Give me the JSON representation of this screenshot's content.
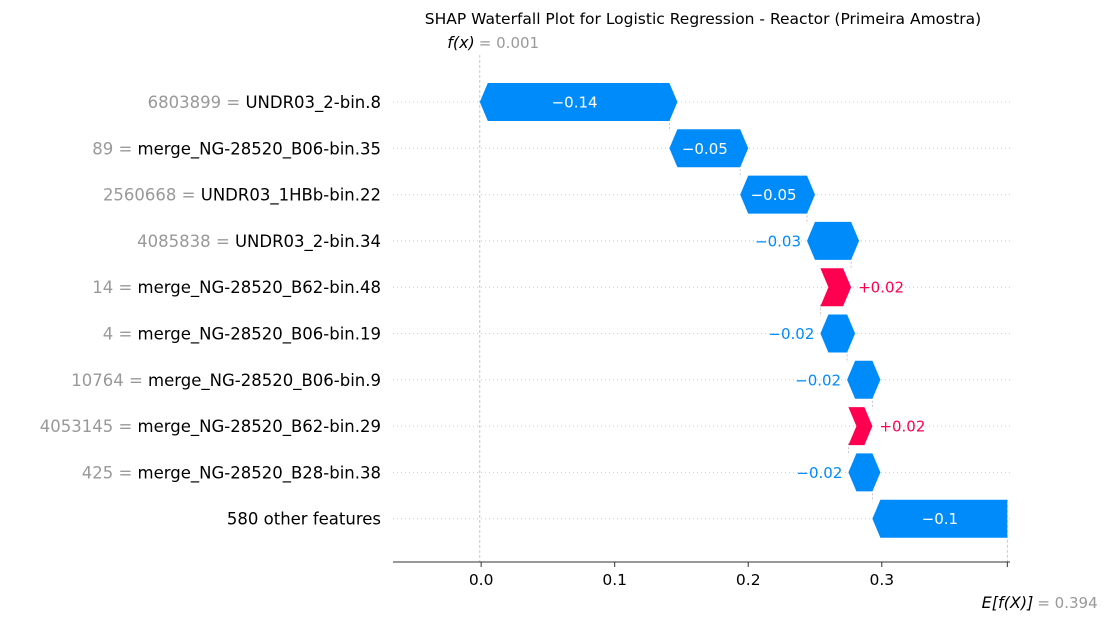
{
  "chart_data": {
    "type": "waterfall",
    "title": "SHAP Waterfall Plot for Logistic Regression - Reactor (Primeira Amostra)",
    "fx_label": "f(x)",
    "fx_value": "0.001",
    "efx_label": "E[f(X)]",
    "efx_value": "0.394",
    "xlim": [
      -0.066,
      0.396
    ],
    "xticks": [
      0.0,
      0.1,
      0.2,
      0.3
    ],
    "xtick_labels": [
      "0.0",
      "0.1",
      "0.2",
      "0.3"
    ],
    "colors": {
      "negative": "#008bfb",
      "positive": "#ff0051",
      "feature_value": "#999999",
      "text": "#000000"
    },
    "features": [
      {
        "value": "6803899",
        "name": "UNDR03_2-bin.8",
        "shap": -0.142,
        "label": "−0.14"
      },
      {
        "value": "89",
        "name": "merge_NG-28520_B06-bin.35",
        "shap": -0.053,
        "label": "−0.05"
      },
      {
        "value": "2560668",
        "name": "UNDR03_1HBb-bin.22",
        "shap": -0.05,
        "label": "−0.05"
      },
      {
        "value": "4085838",
        "name": "UNDR03_2-bin.34",
        "shap": -0.033,
        "label": "−0.03"
      },
      {
        "value": "14",
        "name": "merge_NG-28520_B62-bin.48",
        "shap": 0.023,
        "label": "+0.02"
      },
      {
        "value": "4",
        "name": "merge_NG-28520_B06-bin.19",
        "shap": -0.02,
        "label": "−0.02"
      },
      {
        "value": "10764",
        "name": "merge_NG-28520_B06-bin.9",
        "shap": -0.019,
        "label": "−0.02"
      },
      {
        "value": "4053145",
        "name": "merge_NG-28520_B62-bin.29",
        "shap": 0.018,
        "label": "+0.02"
      },
      {
        "value": "425",
        "name": "merge_NG-28520_B28-bin.38",
        "shap": -0.018,
        "label": "−0.02"
      },
      {
        "value": "",
        "name": "580 other features",
        "shap": -0.101,
        "label": "−0.1"
      }
    ]
  }
}
